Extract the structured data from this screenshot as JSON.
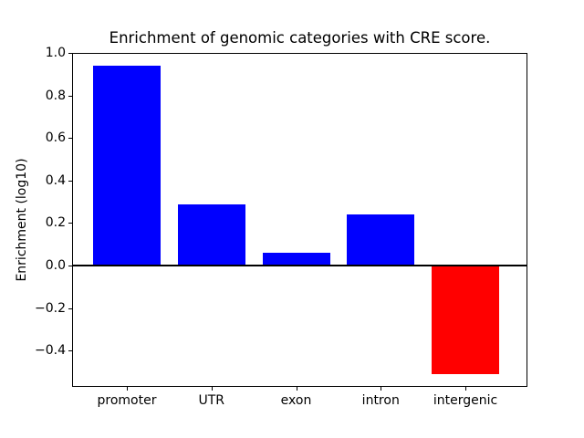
{
  "chart_data": {
    "type": "bar",
    "title": "Enrichment of genomic categories with CRE score.",
    "xlabel": "",
    "ylabel": "Enrichment (log10)",
    "categories": [
      "promoter",
      "UTR",
      "exon",
      "intron",
      "intergenic"
    ],
    "values": [
      0.94,
      0.29,
      0.06,
      0.24,
      -0.51
    ],
    "bar_colors": [
      "#0000ff",
      "#0000ff",
      "#0000ff",
      "#0000ff",
      "#ff0000"
    ],
    "positive_color": "#0000ff",
    "negative_color": "#ff0000",
    "ylim": [
      -0.57,
      1.0
    ],
    "yticks": [
      1.0,
      0.8,
      0.6,
      0.4,
      0.2,
      0.0,
      -0.2,
      -0.4
    ],
    "ytick_labels": [
      "1.0",
      "0.8",
      "0.6",
      "0.4",
      "0.2",
      "0.0",
      "−0.2",
      "−0.4"
    ],
    "zero_line": true,
    "grid": false,
    "legend": null,
    "background_color": "#ffffff"
  }
}
